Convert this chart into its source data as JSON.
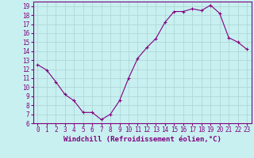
{
  "hours": [
    0,
    1,
    2,
    3,
    4,
    5,
    6,
    7,
    8,
    9,
    10,
    11,
    12,
    13,
    14,
    15,
    16,
    17,
    18,
    19,
    20,
    21,
    22,
    23
  ],
  "values": [
    12.5,
    11.9,
    10.6,
    9.2,
    8.5,
    7.2,
    7.2,
    6.4,
    7.0,
    8.5,
    11.0,
    13.2,
    14.4,
    15.4,
    17.2,
    18.4,
    18.4,
    18.7,
    18.5,
    19.1,
    18.2,
    15.5,
    15.0,
    14.2
  ],
  "line_color": "#800080",
  "marker": "+",
  "bg_color": "#c8f0f0",
  "grid_color": "#b0d8d8",
  "xlabel": "Windchill (Refroidissement éolien,°C)",
  "xlim": [
    -0.5,
    23.5
  ],
  "ylim": [
    6,
    19.5
  ],
  "yticks": [
    6,
    7,
    8,
    9,
    10,
    11,
    12,
    13,
    14,
    15,
    16,
    17,
    18,
    19
  ],
  "xticks": [
    0,
    1,
    2,
    3,
    4,
    5,
    6,
    7,
    8,
    9,
    10,
    11,
    12,
    13,
    14,
    15,
    16,
    17,
    18,
    19,
    20,
    21,
    22,
    23
  ],
  "tick_fontsize": 5.5,
  "xlabel_fontsize": 6.5,
  "border_color": "#800080"
}
